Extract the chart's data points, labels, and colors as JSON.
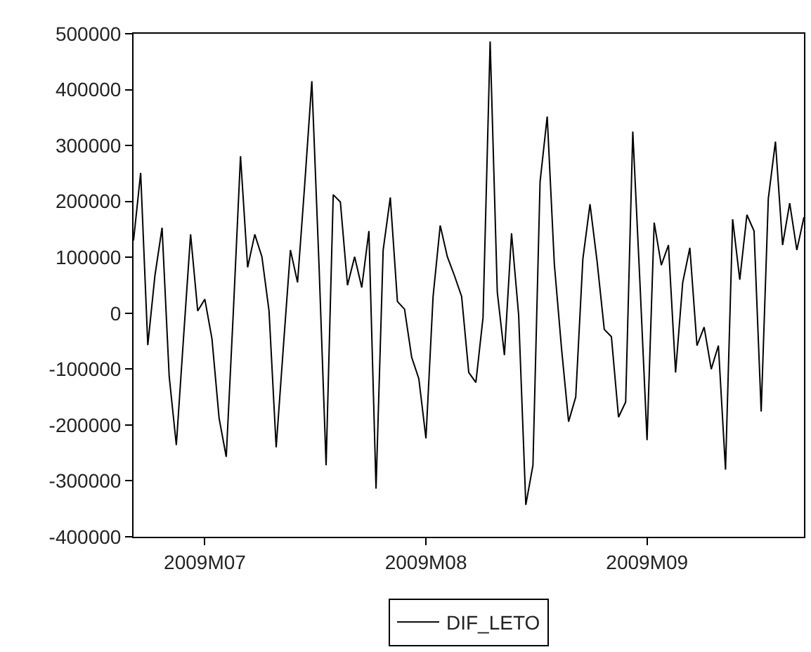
{
  "chart_data": {
    "type": "line",
    "x": [
      "2009-06-21",
      "2009-06-22",
      "2009-06-23",
      "2009-06-24",
      "2009-06-25",
      "2009-06-26",
      "2009-06-27",
      "2009-06-28",
      "2009-06-29",
      "2009-06-30",
      "2009-07-01",
      "2009-07-02",
      "2009-07-03",
      "2009-07-04",
      "2009-07-05",
      "2009-07-06",
      "2009-07-07",
      "2009-07-08",
      "2009-07-09",
      "2009-07-10",
      "2009-07-11",
      "2009-07-12",
      "2009-07-13",
      "2009-07-14",
      "2009-07-15",
      "2009-07-16",
      "2009-07-17",
      "2009-07-18",
      "2009-07-19",
      "2009-07-20",
      "2009-07-21",
      "2009-07-22",
      "2009-07-23",
      "2009-07-24",
      "2009-07-25",
      "2009-07-26",
      "2009-07-27",
      "2009-07-28",
      "2009-07-29",
      "2009-07-30",
      "2009-07-31",
      "2009-08-01",
      "2009-08-02",
      "2009-08-03",
      "2009-08-04",
      "2009-08-05",
      "2009-08-06",
      "2009-08-07",
      "2009-08-08",
      "2009-08-09",
      "2009-08-10",
      "2009-08-11",
      "2009-08-12",
      "2009-08-13",
      "2009-08-14",
      "2009-08-15",
      "2009-08-16",
      "2009-08-17",
      "2009-08-18",
      "2009-08-19",
      "2009-08-20",
      "2009-08-21",
      "2009-08-22",
      "2009-08-23",
      "2009-08-24",
      "2009-08-25",
      "2009-08-26",
      "2009-08-27",
      "2009-08-28",
      "2009-08-29",
      "2009-08-30",
      "2009-08-31",
      "2009-09-01",
      "2009-09-02",
      "2009-09-03",
      "2009-09-04",
      "2009-09-05",
      "2009-09-06",
      "2009-09-07",
      "2009-09-08",
      "2009-09-09",
      "2009-09-10",
      "2009-09-11",
      "2009-09-12",
      "2009-09-13",
      "2009-09-14",
      "2009-09-15",
      "2009-09-16",
      "2009-09-17",
      "2009-09-18",
      "2009-09-19",
      "2009-09-20",
      "2009-09-21",
      "2009-09-22",
      "2009-09-23"
    ],
    "series": [
      {
        "name": "DIF_LETO",
        "color": "#000000",
        "values": [
          130000,
          251000,
          -57000,
          67000,
          153000,
          -113000,
          -236000,
          -46000,
          141000,
          4000,
          25000,
          -46000,
          -188000,
          -257000,
          4000,
          281000,
          82000,
          141000,
          101000,
          4000,
          -240000,
          -62000,
          113000,
          55000,
          230000,
          415000,
          88000,
          -272000,
          212000,
          199000,
          50000,
          101000,
          46000,
          147000,
          -314000,
          113000,
          207000,
          21000,
          7000,
          -79000,
          -117000,
          -224000,
          30000,
          157000,
          101000,
          67000,
          30000,
          -106000,
          -124000,
          -8000,
          486000,
          38000,
          -75000,
          143000,
          -4000,
          -343000,
          -272000,
          235000,
          352000,
          88000,
          -62000,
          -194000,
          -150000,
          97000,
          195000,
          92000,
          -29000,
          -42000,
          -186000,
          -159000,
          325000,
          55000,
          -227000,
          162000,
          86000,
          122000,
          -106000,
          55000,
          117000,
          -58000,
          -25000,
          -100000,
          -58000,
          -280000,
          168000,
          60000,
          176000,
          147000,
          -176000,
          205000,
          307000,
          122000,
          197000,
          113000,
          172000
        ]
      }
    ],
    "xlim": [
      "2009-06-21",
      "2009-09-23"
    ],
    "xticks": [
      {
        "value": "2009-07-01",
        "label": "2009M07"
      },
      {
        "value": "2009-08-01",
        "label": "2009M08"
      },
      {
        "value": "2009-09-01",
        "label": "2009M09"
      }
    ],
    "ylim": [
      -400000,
      500000
    ],
    "yticks": [
      -400000,
      -300000,
      -200000,
      -100000,
      0,
      100000,
      200000,
      300000,
      400000,
      500000
    ],
    "grid": false,
    "legend": "bottom",
    "marker": "none",
    "line_style": "solid"
  }
}
